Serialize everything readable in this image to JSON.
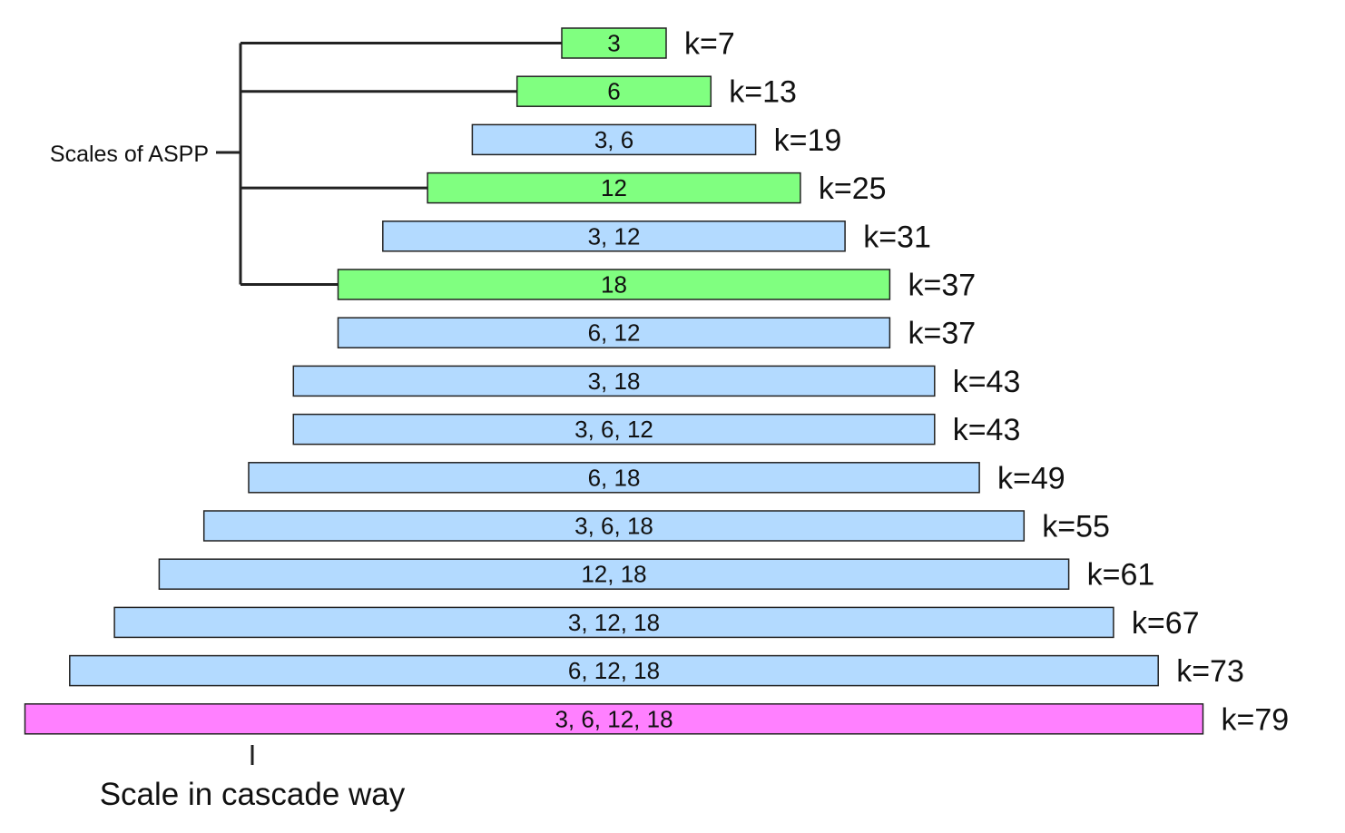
{
  "aspp_label": "Scales of ASPP",
  "cascade_label": "Scale in cascade way",
  "colors": {
    "single_scale": "#80ff80",
    "cascade": "#b3daff",
    "full_cascade": "#ff80ff",
    "stroke": "#222222"
  },
  "rows": [
    {
      "scales": "3",
      "k_label": "k=7",
      "k": 7,
      "kind": "single_scale",
      "aspp": true
    },
    {
      "scales": "6",
      "k_label": "k=13",
      "k": 13,
      "kind": "single_scale",
      "aspp": true
    },
    {
      "scales": "3, 6",
      "k_label": "k=19",
      "k": 19,
      "kind": "cascade",
      "aspp": false
    },
    {
      "scales": "12",
      "k_label": "k=25",
      "k": 25,
      "kind": "single_scale",
      "aspp": true
    },
    {
      "scales": "3, 12",
      "k_label": "k=31",
      "k": 31,
      "kind": "cascade",
      "aspp": false
    },
    {
      "scales": "18",
      "k_label": "k=37",
      "k": 37,
      "kind": "single_scale",
      "aspp": true
    },
    {
      "scales": "6, 12",
      "k_label": "k=37",
      "k": 37,
      "kind": "cascade",
      "aspp": false
    },
    {
      "scales": "3, 18",
      "k_label": "k=43",
      "k": 43,
      "kind": "cascade",
      "aspp": false
    },
    {
      "scales": "3, 6, 12",
      "k_label": "k=43",
      "k": 43,
      "kind": "cascade",
      "aspp": false
    },
    {
      "scales": "6, 18",
      "k_label": "k=49",
      "k": 49,
      "kind": "cascade",
      "aspp": false
    },
    {
      "scales": "3, 6, 18",
      "k_label": "k=55",
      "k": 55,
      "kind": "cascade",
      "aspp": false
    },
    {
      "scales": "12, 18",
      "k_label": "k=61",
      "k": 61,
      "kind": "cascade",
      "aspp": false
    },
    {
      "scales": "3, 12, 18",
      "k_label": "k=67",
      "k": 67,
      "kind": "cascade",
      "aspp": false
    },
    {
      "scales": "6, 12, 18",
      "k_label": "k=73",
      "k": 73,
      "kind": "cascade",
      "aspp": false
    },
    {
      "scales": "3, 6, 12, 18",
      "k_label": "k=79",
      "k": 79,
      "kind": "full_cascade",
      "aspp": false
    }
  ]
}
